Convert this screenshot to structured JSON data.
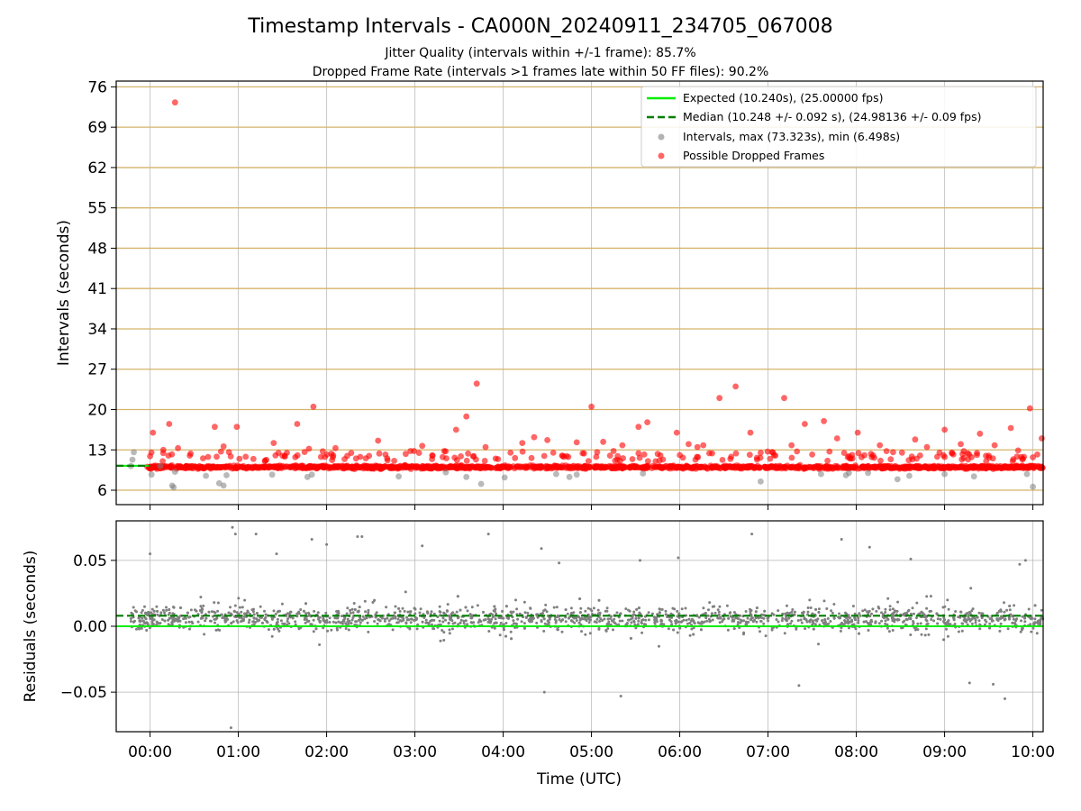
{
  "figure": {
    "title": "Timestamp Intervals - CA000N_20240911_234705_067008",
    "subtitle_1": "Jitter Quality (intervals within +/-1 frame): 85.7%",
    "subtitle_2": "Dropped Frame Rate (intervals >1 frames late within 50 FF files): 90.2%"
  },
  "chart_data": [
    {
      "type": "scatter",
      "ylabel": "Intervals (seconds)",
      "xlabel": "",
      "xlim": [
        "23:37",
        "10:07"
      ],
      "ylim": [
        3.5,
        77
      ],
      "yticks": [
        6,
        13,
        20,
        27,
        34,
        41,
        48,
        55,
        62,
        69,
        76
      ],
      "grid": true,
      "legend": {
        "placement": "top-right",
        "entries": [
          {
            "label": "Expected (10.240s), (25.00000 fps)",
            "style": "solid-line",
            "color": "#00ee00"
          },
          {
            "label": "Median (10.248 +/- 0.092 s), (24.98136 +/- 0.09 fps)",
            "style": "dashed-line",
            "color": "#007f00"
          },
          {
            "label": "Intervals, max (73.323s), min (6.498s)",
            "style": "marker",
            "color": "#808080"
          },
          {
            "label": "Possible Dropped Frames",
            "style": "marker",
            "color": "#ff0000"
          }
        ]
      },
      "expected_line": 10.24,
      "median_line": 10.248,
      "median_span": [
        "23:37",
        "00:00"
      ],
      "series": [
        {
          "name": "Intervals, max (73.323s), min (6.498s)",
          "color": "#808080",
          "x": [
            "23:47",
            "23:48",
            "23:49",
            "00:01",
            "00:07",
            "00:15",
            "00:16",
            "00:17",
            "00:38",
            "00:47",
            "00:50",
            "00:52",
            "01:23",
            "01:47",
            "01:50",
            "02:49",
            "03:21",
            "03:35",
            "03:45",
            "04:01",
            "04:36",
            "04:45",
            "04:50",
            "05:35",
            "06:55",
            "07:36",
            "07:53",
            "07:55",
            "08:08",
            "08:28",
            "08:36",
            "09:00",
            "09:20",
            "09:56",
            "10:00"
          ],
          "y": [
            10.2,
            11.3,
            12.6,
            8.7,
            10.2,
            6.8,
            6.5,
            9.2,
            8.5,
            7.2,
            6.8,
            8.6,
            8.7,
            8.3,
            8.7,
            8.4,
            9.1,
            8.3,
            7.1,
            8.2,
            8.8,
            8.3,
            8.7,
            8.9,
            7.5,
            8.8,
            8.6,
            9.0,
            9.0,
            7.9,
            8.5,
            8.8,
            8.4,
            8.8,
            6.6
          ]
        },
        {
          "name": "Possible Dropped Frames",
          "color": "#ff0000",
          "x": [
            "00:17",
            "00:02",
            "00:13",
            "00:09",
            "00:19",
            "00:44",
            "00:50",
            "00:59",
            "01:24",
            "01:40",
            "01:48",
            "01:51",
            "02:06",
            "02:35",
            "02:57",
            "03:05",
            "03:20",
            "03:28",
            "03:35",
            "03:42",
            "03:48",
            "04:13",
            "04:21",
            "04:30",
            "04:50",
            "05:00",
            "05:08",
            "05:21",
            "05:32",
            "05:38",
            "05:58",
            "06:06",
            "06:16",
            "06:27",
            "06:38",
            "06:48",
            "07:11",
            "07:16",
            "07:25",
            "07:38",
            "07:47",
            "08:01",
            "08:16",
            "08:40",
            "08:48",
            "09:00",
            "09:11",
            "09:24",
            "09:34",
            "09:45",
            "09:58",
            "10:06",
            "00:27",
            "01:05",
            "01:33",
            "02:20",
            "02:40",
            "03:12",
            "03:40",
            "04:05",
            "04:40",
            "05:15",
            "05:45",
            "06:00",
            "06:12",
            "06:22",
            "06:35",
            "06:55",
            "07:05",
            "07:30",
            "07:55",
            "08:10",
            "08:25",
            "08:55",
            "09:05",
            "09:30",
            "09:50",
            "10:03"
          ],
          "y": [
            73.3,
            16.0,
            17.5,
            13.0,
            13.3,
            17.0,
            13.6,
            17.0,
            14.2,
            17.5,
            13.2,
            20.5,
            13.3,
            14.6,
            12.8,
            13.7,
            12.8,
            16.5,
            18.8,
            24.5,
            13.5,
            14.2,
            15.2,
            14.7,
            14.3,
            20.5,
            14.4,
            13.8,
            17.0,
            17.8,
            16.0,
            14.0,
            13.8,
            22.0,
            24.0,
            16.0,
            22.0,
            13.8,
            17.5,
            18.0,
            15.0,
            16.0,
            13.8,
            14.8,
            13.5,
            16.5,
            14.0,
            15.8,
            13.8,
            16.8,
            20.2,
            15.0,
            12.0,
            11.8,
            12.5,
            11.5,
            12.2,
            12.0,
            11.9,
            12.5,
            12.0,
            12.8,
            12.3,
            12.1,
            13.5,
            12.4,
            11.8,
            12.5,
            12.0,
            12.2,
            11.9,
            12.3,
            12.6,
            11.8,
            12.4,
            12.0,
            12.9,
            12.2
          ]
        }
      ],
      "dense_band": {
        "name": "Possible Dropped Frames",
        "center": 10.0,
        "span": [
          "23:58",
          "10:07"
        ],
        "color": "#ff0000"
      }
    },
    {
      "type": "scatter",
      "ylabel": "Residuals (seconds)",
      "xlabel": "Time (UTC)",
      "xlim": [
        "23:37",
        "10:07"
      ],
      "ylim": [
        -0.08,
        0.08
      ],
      "yticks": [
        -0.05,
        0.0,
        0.05
      ],
      "ytick_labels": [
        "−0.05",
        "0.00",
        "0.05"
      ],
      "xticks": [
        "00:00",
        "01:00",
        "02:00",
        "03:00",
        "04:00",
        "05:00",
        "06:00",
        "07:00",
        "08:00",
        "09:00",
        "10:00"
      ],
      "grid": true,
      "expected_line": 0.0,
      "median_line": 0.008,
      "series": [
        {
          "name": "",
          "color": "#808080",
          "x": [
            "00:00",
            "00:56",
            "00:58",
            "01:12",
            "01:26",
            "01:50",
            "02:00",
            "02:21",
            "02:24",
            "03:05",
            "03:50",
            "04:26",
            "04:38",
            "04:28",
            "05:20",
            "05:33",
            "05:59",
            "06:49",
            "07:21",
            "07:50",
            "08:09",
            "08:37",
            "09:17",
            "09:33",
            "09:41",
            "09:51",
            "09:55",
            "00:55"
          ],
          "y": [
            0.055,
            0.075,
            0.07,
            0.07,
            0.055,
            0.066,
            0.062,
            0.068,
            0.068,
            0.061,
            0.07,
            0.059,
            0.048,
            -0.05,
            -0.053,
            0.05,
            0.052,
            0.07,
            -0.045,
            0.066,
            0.06,
            0.051,
            -0.043,
            -0.044,
            -0.055,
            0.047,
            0.05,
            -0.077
          ]
        }
      ],
      "dense_cloud": {
        "name": "",
        "center": 0.006,
        "span": [
          "23:47",
          "10:07"
        ],
        "color": "#808080"
      }
    }
  ]
}
